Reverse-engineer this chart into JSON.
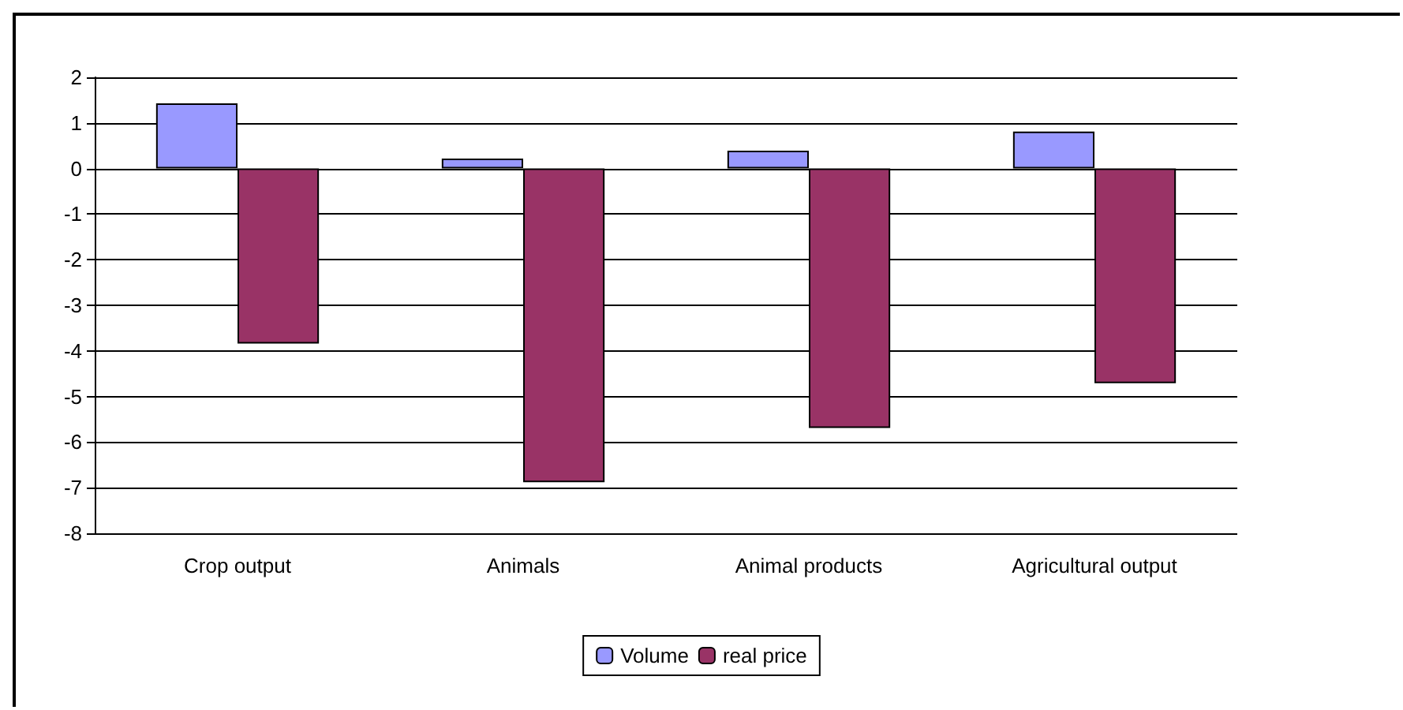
{
  "chart_data": {
    "type": "bar",
    "categories": [
      "Crop output",
      "Animals",
      "Animal products",
      "Agricultural output"
    ],
    "series": [
      {
        "name": "Volume",
        "color": "#9999ff",
        "values": [
          1.43,
          0.22,
          0.39,
          0.81
        ]
      },
      {
        "name": "real price",
        "color": "#993366",
        "values": [
          -3.84,
          -6.88,
          -5.69,
          -4.71
        ]
      }
    ],
    "ylim": [
      -8,
      2
    ],
    "yticks": [
      -8,
      -7,
      -6,
      -5,
      -4,
      -3,
      -2,
      -1,
      0,
      1,
      2
    ],
    "grid": "y",
    "legend": "bottom"
  }
}
